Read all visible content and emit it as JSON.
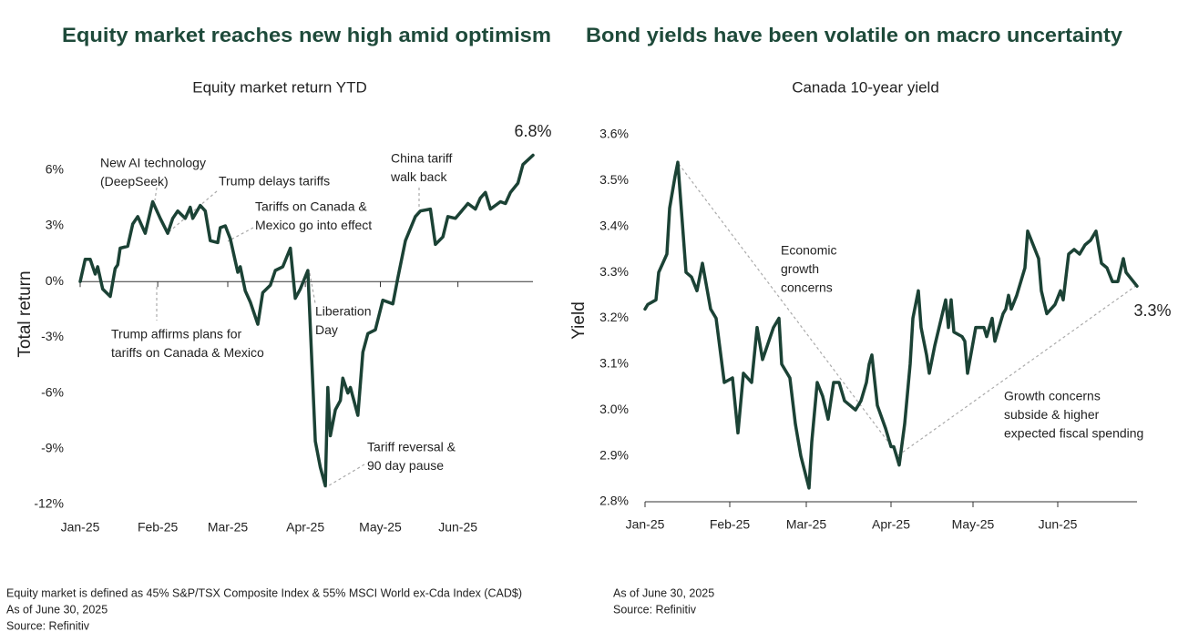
{
  "chart_data": [
    {
      "type": "line",
      "heading": "Equity market reaches new high amid optimism",
      "title": "Equity market return YTD",
      "y_label": "Total return",
      "color": "#1b4235",
      "xlim": [
        0,
        181
      ],
      "xticks": [
        {
          "value": 0,
          "label": "Jan-25"
        },
        {
          "value": 31,
          "label": "Feb-25"
        },
        {
          "value": 59,
          "label": "Mar-25"
        },
        {
          "value": 90,
          "label": "Apr-25"
        },
        {
          "value": 120,
          "label": "May-25"
        },
        {
          "value": 151,
          "label": "Jun-25"
        }
      ],
      "ylim": [
        -12,
        7.5
      ],
      "yticks": [
        {
          "value": 6,
          "label": "6%"
        },
        {
          "value": 3,
          "label": "3%"
        },
        {
          "value": 0,
          "label": "0%"
        },
        {
          "value": -3,
          "label": "-3%"
        },
        {
          "value": -6,
          "label": "-6%"
        },
        {
          "value": -9,
          "label": "-9%"
        },
        {
          "value": -12,
          "label": "-12%"
        }
      ],
      "x": [
        0,
        2,
        4,
        6,
        7,
        9,
        12,
        14,
        15,
        16,
        19,
        21,
        23,
        26,
        29,
        32,
        35,
        37,
        39,
        42,
        44,
        45,
        48,
        50,
        52,
        55,
        56,
        58,
        60,
        63,
        64,
        66,
        68,
        71,
        73,
        76,
        78,
        81,
        84,
        86,
        88,
        91,
        94,
        96,
        98,
        99,
        100,
        102,
        104,
        105,
        107,
        108,
        111,
        113,
        115,
        118,
        121,
        125,
        127,
        130,
        134,
        136,
        140,
        142,
        145,
        147,
        150,
        155,
        158,
        160,
        162,
        164,
        168,
        170,
        172,
        175,
        177,
        181
      ],
      "values": [
        0,
        1.2,
        1.2,
        0.4,
        0.8,
        -0.4,
        -0.8,
        0.7,
        0.9,
        1.8,
        1.9,
        3.1,
        3.5,
        2.6,
        4.3,
        3.4,
        2.6,
        3.4,
        3.8,
        3.4,
        4.0,
        3.4,
        4.1,
        3.8,
        2.2,
        2.1,
        2.9,
        3.0,
        2.3,
        0.5,
        0.8,
        -0.5,
        -1.1,
        -2.3,
        -0.6,
        -0.2,
        0.6,
        0.8,
        1.8,
        -0.9,
        -0.4,
        0.6,
        -8.6,
        -10.0,
        -11.0,
        -5.7,
        -8.3,
        -6.9,
        -6.4,
        -5.2,
        -6.0,
        -5.7,
        -7.2,
        -3.8,
        -2.8,
        -2.6,
        -1.0,
        -1.2,
        0.2,
        2.2,
        3.5,
        3.8,
        3.9,
        2.0,
        2.4,
        3.5,
        3.4,
        4.2,
        3.9,
        4.5,
        4.8,
        3.9,
        4.3,
        4.2,
        4.8,
        5.3,
        6.3,
        6.8
      ],
      "value_labels": [
        null,
        null,
        null,
        null,
        null,
        null,
        null,
        null,
        null,
        null,
        null,
        null,
        null,
        null,
        null,
        null,
        null,
        null,
        null,
        null,
        null,
        null,
        null,
        null,
        null,
        null,
        null,
        null,
        null,
        null,
        null,
        null,
        null,
        null,
        null,
        null,
        null,
        null,
        null,
        null,
        null,
        null,
        null,
        null,
        null,
        null,
        null,
        null,
        null,
        null,
        null,
        null,
        null,
        null,
        null,
        null,
        null,
        null,
        null,
        null,
        null,
        null,
        null,
        null,
        null,
        null,
        null,
        null,
        null,
        null,
        null,
        null,
        null,
        null,
        null,
        null,
        null,
        "6.8%"
      ],
      "annotations": [
        {
          "lines": [
            "New AI technology",
            "(DeepSeek)"
          ]
        },
        {
          "lines": [
            "Trump delays tariffs"
          ]
        },
        {
          "lines": [
            "Tariffs on Canada &",
            "Mexico go into effect"
          ]
        },
        {
          "lines": [
            "Trump affirms plans for",
            "tariffs on Canada & Mexico"
          ]
        },
        {
          "lines": [
            "Liberation",
            "Day"
          ]
        },
        {
          "lines": [
            "Tariff reversal &",
            "90 day pause"
          ]
        },
        {
          "lines": [
            "China tariff",
            "walk back"
          ]
        }
      ],
      "notes": [
        "Equity market is defined as 45% S&P/TSX Composite Index & 55% MSCI World ex-Cda Index (CAD$)",
        "As of June 30, 2025",
        "Source: Refinitiv"
      ]
    },
    {
      "type": "line",
      "heading": "Bond yields have been volatile on macro uncertainty",
      "title": "Canada 10-year yield",
      "y_label": "Yield",
      "color": "#1b4235",
      "xlim": [
        0,
        180
      ],
      "xticks": [
        {
          "value": 0,
          "label": "Jan-25"
        },
        {
          "value": 31,
          "label": "Feb-25"
        },
        {
          "value": 59,
          "label": "Mar-25"
        },
        {
          "value": 90,
          "label": "Apr-25"
        },
        {
          "value": 120,
          "label": "May-25"
        },
        {
          "value": 151,
          "label": "Jun-25"
        }
      ],
      "ylim": [
        2.8,
        3.6
      ],
      "yticks": [
        {
          "value": 3.6,
          "label": "3.6%"
        },
        {
          "value": 3.5,
          "label": "3.5%"
        },
        {
          "value": 3.4,
          "label": "3.4%"
        },
        {
          "value": 3.3,
          "label": "3.3%"
        },
        {
          "value": 3.2,
          "label": "3.2%"
        },
        {
          "value": 3.1,
          "label": "3.1%"
        },
        {
          "value": 3.0,
          "label": "3.0%"
        },
        {
          "value": 2.9,
          "label": "2.9%"
        },
        {
          "value": 2.8,
          "label": "2.8%"
        }
      ],
      "x": [
        0,
        1,
        4,
        5,
        8,
        9,
        11,
        12,
        15,
        17,
        19,
        21,
        24,
        26,
        29,
        32,
        34,
        36,
        39,
        41,
        43,
        47,
        49,
        50,
        53,
        55,
        57,
        60,
        61,
        63,
        65,
        67,
        69,
        71,
        73,
        75,
        77,
        79,
        81,
        82,
        83,
        85,
        88,
        90,
        91,
        93,
        95,
        97,
        98,
        100,
        101,
        103,
        104,
        106,
        108,
        110,
        111,
        112,
        113,
        116,
        117,
        118,
        121,
        124,
        125,
        127,
        128,
        131,
        132,
        133,
        134,
        136,
        139,
        140,
        142,
        144,
        145,
        147,
        150,
        152,
        153,
        155,
        157,
        159,
        161,
        163,
        165,
        167,
        169,
        171,
        173,
        175,
        176,
        180
      ],
      "values": [
        3.22,
        3.23,
        3.24,
        3.3,
        3.34,
        3.44,
        3.51,
        3.54,
        3.3,
        3.29,
        3.26,
        3.32,
        3.22,
        3.2,
        3.06,
        3.07,
        2.95,
        3.08,
        3.06,
        3.18,
        3.11,
        3.18,
        3.2,
        3.1,
        3.07,
        2.97,
        2.9,
        2.83,
        2.93,
        3.06,
        3.03,
        2.98,
        3.06,
        3.06,
        3.02,
        3.01,
        3.0,
        3.02,
        3.06,
        3.1,
        3.12,
        3.01,
        2.96,
        2.92,
        2.92,
        2.88,
        2.97,
        3.1,
        3.2,
        3.26,
        3.18,
        3.12,
        3.08,
        3.14,
        3.19,
        3.24,
        3.18,
        3.24,
        3.17,
        3.16,
        3.15,
        3.08,
        3.18,
        3.18,
        3.16,
        3.2,
        3.15,
        3.21,
        3.22,
        3.25,
        3.22,
        3.25,
        3.31,
        3.39,
        3.36,
        3.33,
        3.26,
        3.21,
        3.23,
        3.26,
        3.24,
        3.34,
        3.35,
        3.34,
        3.36,
        3.37,
        3.39,
        3.32,
        3.31,
        3.28,
        3.28,
        3.33,
        3.3,
        3.27
      ],
      "value_labels": [
        null,
        null,
        null,
        null,
        null,
        null,
        null,
        null,
        null,
        null,
        null,
        null,
        null,
        null,
        null,
        null,
        null,
        null,
        null,
        null,
        null,
        null,
        null,
        null,
        null,
        null,
        null,
        null,
        null,
        null,
        null,
        null,
        null,
        null,
        null,
        null,
        null,
        null,
        null,
        null,
        null,
        null,
        null,
        null,
        null,
        null,
        null,
        null,
        null,
        null,
        null,
        null,
        null,
        null,
        null,
        null,
        null,
        null,
        null,
        null,
        null,
        null,
        null,
        null,
        null,
        null,
        null,
        null,
        null,
        null,
        null,
        null,
        null,
        null,
        null,
        null,
        null,
        null,
        null,
        null,
        null,
        null,
        null,
        null,
        null,
        null,
        null,
        null,
        null,
        null,
        null,
        null,
        null,
        "3.3%"
      ],
      "annotations": [
        {
          "lines": [
            "Economic",
            "growth",
            "concerns"
          ]
        },
        {
          "lines": [
            "Growth concerns",
            "subside & higher",
            "expected fiscal spending"
          ]
        }
      ],
      "notes": [
        "As of June 30, 2025",
        "Source: Refinitiv"
      ]
    }
  ]
}
